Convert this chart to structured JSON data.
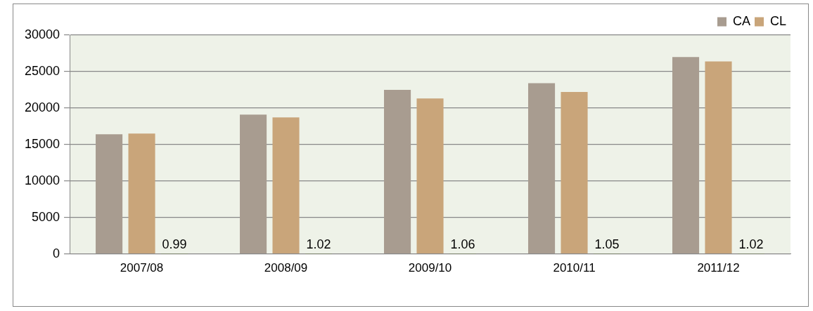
{
  "chart_data": {
    "type": "bar",
    "categories": [
      "2007/08",
      "2008/09",
      "2009/10",
      "2010/11",
      "2011/12"
    ],
    "series": [
      {
        "name": "CA",
        "color": "#a89c90",
        "values": [
          16400,
          19100,
          22500,
          23400,
          27000
        ]
      },
      {
        "name": "CL",
        "color": "#c9a57a",
        "values": [
          16500,
          18700,
          21300,
          22200,
          26400
        ]
      },
      {
        "color": "#77933c",
        "values": [
          0.99,
          1.02,
          1.06,
          1.05,
          1.02
        ],
        "value_labels": [
          "0.99",
          "1.02",
          "1.06",
          "1.05",
          "1.02"
        ]
      }
    ],
    "ylim": [
      0,
      30000
    ],
    "yticks": [
      0,
      5000,
      10000,
      15000,
      20000,
      25000,
      30000
    ],
    "grid": "y",
    "legend": "top right"
  }
}
